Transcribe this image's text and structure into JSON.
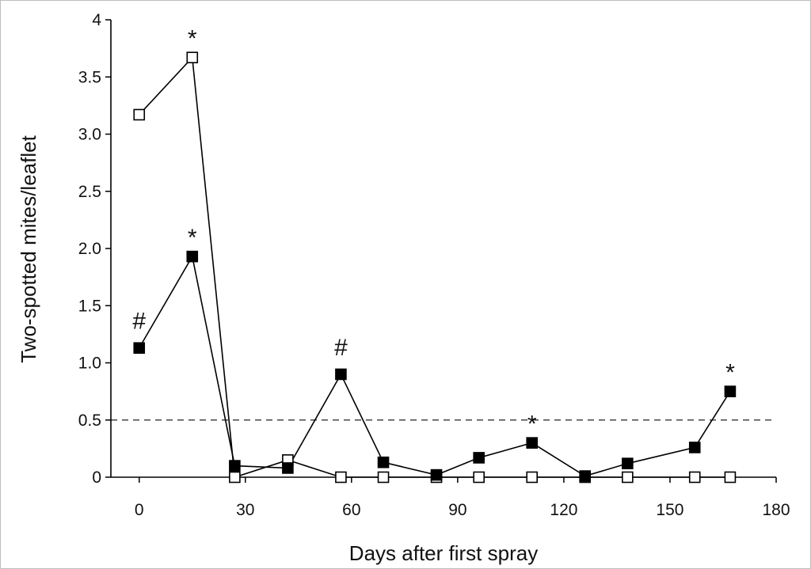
{
  "chart_data": {
    "type": "line",
    "xlabel": "Days after first spray",
    "ylabel": "Two-spotted mites/leaflet",
    "xlim": [
      -8,
      180
    ],
    "ylim": [
      0,
      4
    ],
    "xticks": [
      "0",
      "30",
      "60",
      "90",
      "120",
      "150",
      "180"
    ],
    "xtick_values": [
      0,
      30,
      60,
      90,
      120,
      150,
      180
    ],
    "yticks": [
      "0",
      "0.5",
      "1.0",
      "1.5",
      "2.0",
      "2.5",
      "3.0",
      "3.5",
      "4"
    ],
    "ytick_values": [
      0,
      0.5,
      1.0,
      1.5,
      2.0,
      2.5,
      3.0,
      3.5,
      4.0
    ],
    "threshold": 0.5,
    "grid": false,
    "series": [
      {
        "marker": "open-square",
        "color": "#000000",
        "x": [
          0,
          15,
          27,
          42,
          57,
          69,
          84,
          96,
          111,
          126,
          138,
          157,
          167
        ],
        "y": [
          3.17,
          3.67,
          0.0,
          0.15,
          0.0,
          0.0,
          0.0,
          0.0,
          0.0,
          0.0,
          0.0,
          0.0,
          0.0
        ]
      },
      {
        "marker": "filled-square",
        "color": "#000000",
        "x": [
          0,
          15,
          27,
          42,
          57,
          69,
          84,
          96,
          111,
          126,
          138,
          157,
          167
        ],
        "y": [
          1.13,
          1.93,
          0.1,
          0.08,
          0.9,
          0.13,
          0.02,
          0.17,
          0.3,
          0.01,
          0.12,
          0.26,
          0.75
        ]
      }
    ],
    "annotations": [
      {
        "text": "*",
        "x": 15,
        "y": 3.67
      },
      {
        "text": "*",
        "x": 15,
        "y": 1.93
      },
      {
        "text": "#",
        "x": 0,
        "y": 1.13
      },
      {
        "text": "#",
        "x": 57,
        "y": 0.9
      },
      {
        "text": "*",
        "x": 111,
        "y": 0.3
      },
      {
        "text": "*",
        "x": 167,
        "y": 0.75
      }
    ]
  }
}
